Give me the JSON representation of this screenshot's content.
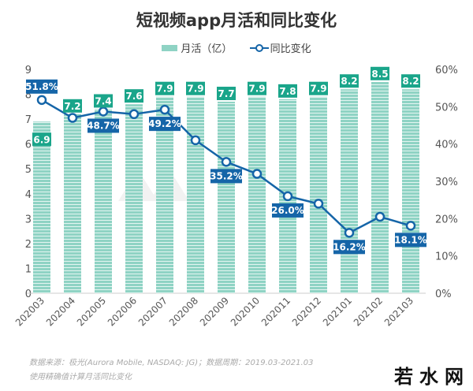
{
  "chart_data": {
    "type": "bar+line",
    "title": "短视频app月活和同比变化",
    "categories": [
      "202003",
      "202004",
      "202005",
      "202006",
      "202007",
      "202008",
      "202009",
      "202010",
      "202011",
      "202012",
      "202101",
      "202102",
      "202103"
    ],
    "series": [
      {
        "name": "月活（亿）",
        "type": "bar",
        "axis": "left",
        "color": "#8fd3c4",
        "values": [
          6.9,
          7.2,
          7.4,
          7.6,
          7.9,
          7.9,
          7.7,
          7.9,
          7.8,
          7.9,
          8.2,
          8.5,
          8.2
        ],
        "labels": [
          "6.9",
          "7.2",
          "7.4",
          "7.6",
          "7.9",
          "7.9",
          "7.7",
          "7.9",
          "7.8",
          "7.9",
          "8.2",
          "8.5",
          "8.2"
        ]
      },
      {
        "name": "同比变化",
        "type": "line",
        "axis": "right",
        "color": "#1565a8",
        "values": [
          51.8,
          47.0,
          48.7,
          48.0,
          49.2,
          41.0,
          35.2,
          32.0,
          26.0,
          24.0,
          16.2,
          20.5,
          18.1
        ],
        "labels": [
          "51.8%",
          "",
          "48.7%",
          "",
          "49.2%",
          "",
          "35.2%",
          "",
          "26.0%",
          "",
          "16.2%",
          "",
          "18.1%"
        ]
      }
    ],
    "y_left": {
      "range": [
        0,
        9
      ],
      "ticks": [
        "0",
        "1",
        "2",
        "3",
        "4",
        "5",
        "6",
        "7",
        "8",
        "9"
      ]
    },
    "y_right": {
      "range": [
        0,
        60
      ],
      "ticks": [
        "0%",
        "10%",
        "20%",
        "30%",
        "40%",
        "50%",
        "60%"
      ]
    },
    "legend_placement": "top-center",
    "grid": false
  },
  "footer": {
    "source": "数据来源：极光(Aurora Mobile, NASDAQ: JG)；数据周期：2019.03-2021.03",
    "note": "使用精确值计算月活同比变化"
  },
  "watermark": "AURORA 极光",
  "logo": "若水网",
  "colors": {
    "bar": "#8fd3c4",
    "bar_label": "#1aa58a",
    "line": "#1565a8"
  }
}
